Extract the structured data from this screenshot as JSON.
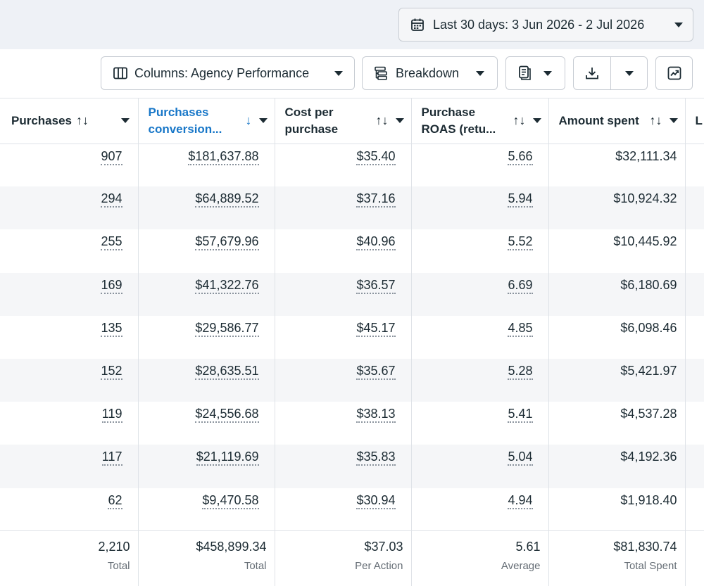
{
  "date_range": {
    "label": "Last 30 days: 3 Jun 2026 - 2 Jul 2026",
    "icon": "calendar-icon"
  },
  "toolbar": {
    "columns_label": "Columns: Agency Performance",
    "breakdown_label": "Breakdown"
  },
  "table": {
    "headers": [
      {
        "label": "Purchases",
        "sort": "↑↓"
      },
      {
        "label": "Purchases conversion...",
        "sort": "↓"
      },
      {
        "label": "Cost per purchase",
        "sort": "↑↓"
      },
      {
        "label": "Purchase ROAS (retu...",
        "sort": "↑↓"
      },
      {
        "label": "Amount spent",
        "sort": "↑↓"
      },
      {
        "label": "L"
      }
    ],
    "rows": [
      [
        "907",
        "$181,637.88",
        "$35.40",
        "5.66",
        "$32,111.34"
      ],
      [
        "294",
        "$64,889.52",
        "$37.16",
        "5.94",
        "$10,924.32"
      ],
      [
        "255",
        "$57,679.96",
        "$40.96",
        "5.52",
        "$10,445.92"
      ],
      [
        "169",
        "$41,322.76",
        "$36.57",
        "6.69",
        "$6,180.69"
      ],
      [
        "135",
        "$29,586.77",
        "$45.17",
        "4.85",
        "$6,098.46"
      ],
      [
        "152",
        "$28,635.51",
        "$35.67",
        "5.28",
        "$5,421.97"
      ],
      [
        "119",
        "$24,556.68",
        "$38.13",
        "5.41",
        "$4,537.28"
      ],
      [
        "117",
        "$21,119.69",
        "$35.83",
        "5.04",
        "$4,192.36"
      ],
      [
        "62",
        "$9,470.58",
        "$30.94",
        "4.94",
        "$1,918.40"
      ]
    ],
    "totals": [
      {
        "value": "2,210",
        "label": "Total"
      },
      {
        "value": "$458,899.34",
        "label": "Total"
      },
      {
        "value": "$37.03",
        "label": "Per Action"
      },
      {
        "value": "5.61",
        "label": "Average"
      },
      {
        "value": "$81,830.74",
        "label": "Total Spent"
      }
    ]
  },
  "colors": {
    "accent": "#1877c8",
    "border": "#dfe3e8",
    "stripe": "#f5f6f8",
    "text": "#1c2b33"
  }
}
